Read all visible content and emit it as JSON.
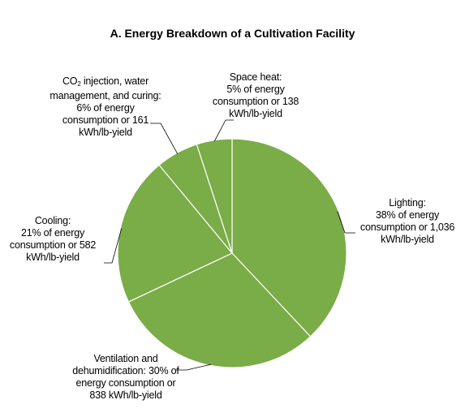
{
  "chart_data": {
    "type": "pie",
    "title": "A.  Energy Breakdown of a Cultivation Facility",
    "slice_color": "#7aac47",
    "edge_color": "#ffffff",
    "slices": [
      {
        "name": "Lighting",
        "percent": 38,
        "kwh_per_lb_yield": 1036,
        "label_lines": [
          "Lighting:",
          "38% of energy",
          "consumption or 1,036",
          "kWh/lb-yield"
        ]
      },
      {
        "name": "Ventilation and dehumidification",
        "percent": 30,
        "kwh_per_lb_yield": 838,
        "label_lines": [
          "Ventilation and",
          "dehumidification: 30% of",
          "energy consumption or",
          "838 kWh/lb-yield"
        ]
      },
      {
        "name": "Cooling",
        "percent": 21,
        "kwh_per_lb_yield": 582,
        "label_lines": [
          "Cooling:",
          "21% of energy",
          "consumption or 582",
          "kWh/lb-yield"
        ]
      },
      {
        "name": "CO2 injection, water management, and curing",
        "percent": 6,
        "kwh_per_lb_yield": 161,
        "label_lines": [
          "CO2 injection, water",
          "management, and curing:",
          "6% of energy",
          "consumption or 161",
          "kWh/lb-yield"
        ]
      },
      {
        "name": "Space heat",
        "percent": 5,
        "kwh_per_lb_yield": 138,
        "label_lines": [
          "Space heat:",
          "5% of energy",
          "consumption or 138",
          "kWh/lb-yield"
        ]
      }
    ]
  }
}
